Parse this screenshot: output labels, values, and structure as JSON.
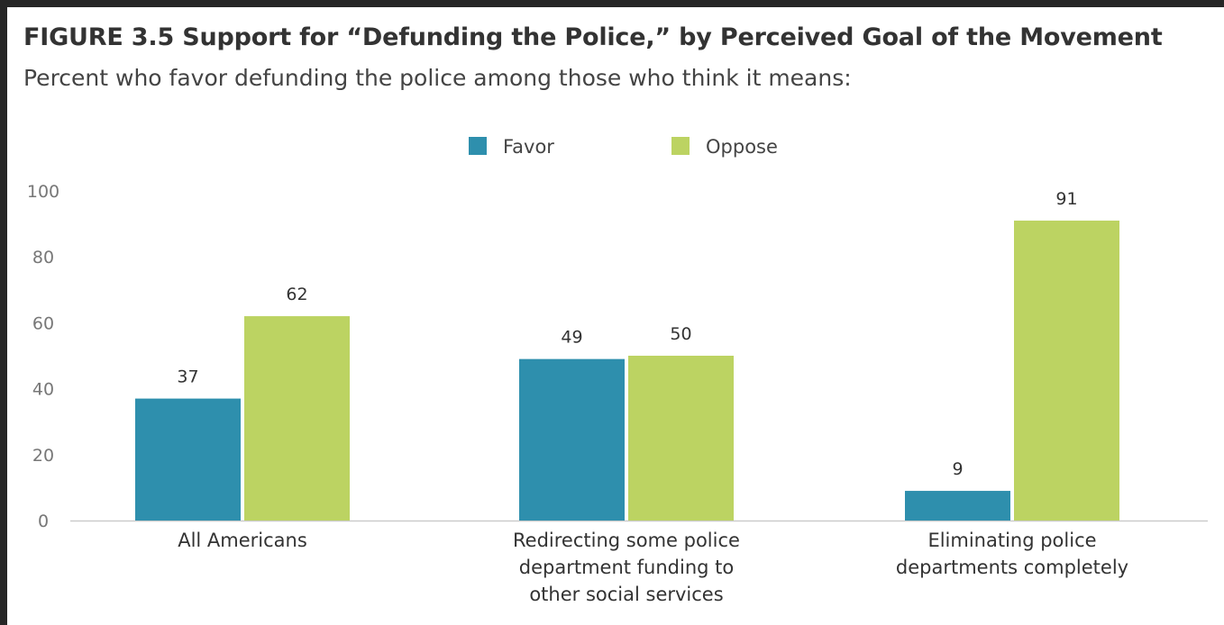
{
  "title": "FIGURE 3.5  Support for “Defunding the Police,” by Perceived Goal of the Movement",
  "subtitle": "Percent who favor defunding the police among those who think it means:",
  "chart_data": {
    "type": "bar",
    "title": "FIGURE 3.5  Support for “Defunding the Police,” by Perceived Goal of the Movement",
    "subtitle": "Percent who favor defunding the police among those who think it means:",
    "xlabel": "",
    "ylabel": "",
    "ylim": [
      0,
      100
    ],
    "yticks": [
      0,
      20,
      40,
      60,
      80,
      100
    ],
    "grid": false,
    "legend_position": "top-center",
    "categories": [
      [
        "All Americans"
      ],
      [
        "Redirecting some police",
        "department funding to",
        "other social services"
      ],
      [
        "Eliminating police",
        "departments completely"
      ]
    ],
    "series": [
      {
        "name": "Favor",
        "color": "#2e8fad",
        "values": [
          37,
          49,
          9
        ]
      },
      {
        "name": "Oppose",
        "color": "#bcd362",
        "values": [
          62,
          50,
          91
        ]
      }
    ]
  }
}
